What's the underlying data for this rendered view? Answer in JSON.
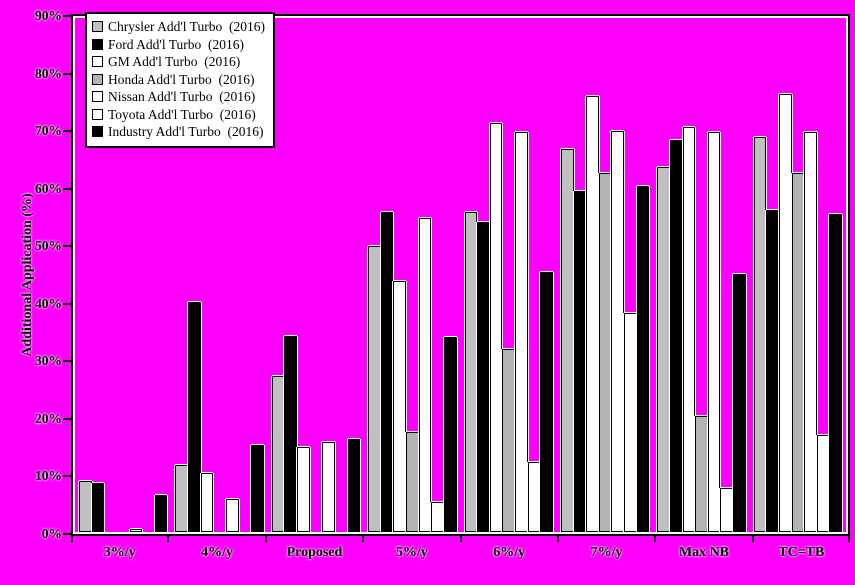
{
  "chart_data": {
    "type": "bar",
    "title": "",
    "ylabel": "Additional Application (%)",
    "xlabel": "",
    "ylim": [
      0,
      90
    ],
    "ytick_values": [
      0,
      10,
      20,
      30,
      40,
      50,
      60,
      70,
      80,
      90
    ],
    "ytick_labels": [
      "0%",
      "10%",
      "20%",
      "30%",
      "40%",
      "50%",
      "60%",
      "70%",
      "80%",
      "90%"
    ],
    "categories": [
      "3%/y",
      "4%/y",
      "Proposed",
      "5%/y",
      "6%/y",
      "7%/y",
      "Max NB",
      "TC=TB"
    ],
    "grid": false,
    "legend_position": "top-left",
    "background_color": "#ff00ff",
    "plot_background_color": "#ff00ff",
    "bar_edge_color": "#000000",
    "bar_highlight_color": "#ffffff",
    "series": [
      {
        "name": "Chrysler Add'l Turbo  (2016)",
        "color": "#c0c0c0",
        "values": [
          9.0,
          11.8,
          27.3,
          50.0,
          56.0,
          67.1,
          64.0,
          69.2
        ]
      },
      {
        "name": "Ford Add'l Turbo  (2016)",
        "color": "#000000",
        "values": [
          8.5,
          40.3,
          34.3,
          56.0,
          54.3,
          59.7,
          68.7,
          56.3
        ]
      },
      {
        "name": "GM Add'l Turbo  (2016)",
        "color": "#ffffff",
        "values": [
          0,
          10.3,
          14.8,
          44.0,
          71.7,
          76.3,
          71.0,
          76.7
        ]
      },
      {
        "name": "Honda Add'l Turbo  (2016)",
        "color": "#b3b3b3",
        "values": [
          0,
          0,
          0,
          17.6,
          32.0,
          62.8,
          20.3,
          62.8
        ]
      },
      {
        "name": "Nissan Add'l Turbo  (2016)",
        "color": "#ffffff",
        "values": [
          0.5,
          5.7,
          15.7,
          55.0,
          70.1,
          70.3,
          70.1,
          70.1
        ]
      },
      {
        "name": "Toyota Add'l Turbo  (2016)",
        "color": "#ffffff",
        "values": [
          0,
          0,
          0,
          5.2,
          12.3,
          38.3,
          7.7,
          17.0
        ]
      },
      {
        "name": "Industry Add'l Turbo  (2016)",
        "color": "#000000",
        "values": [
          6.4,
          15.3,
          16.3,
          34.1,
          45.6,
          60.5,
          45.2,
          55.7
        ]
      }
    ]
  }
}
